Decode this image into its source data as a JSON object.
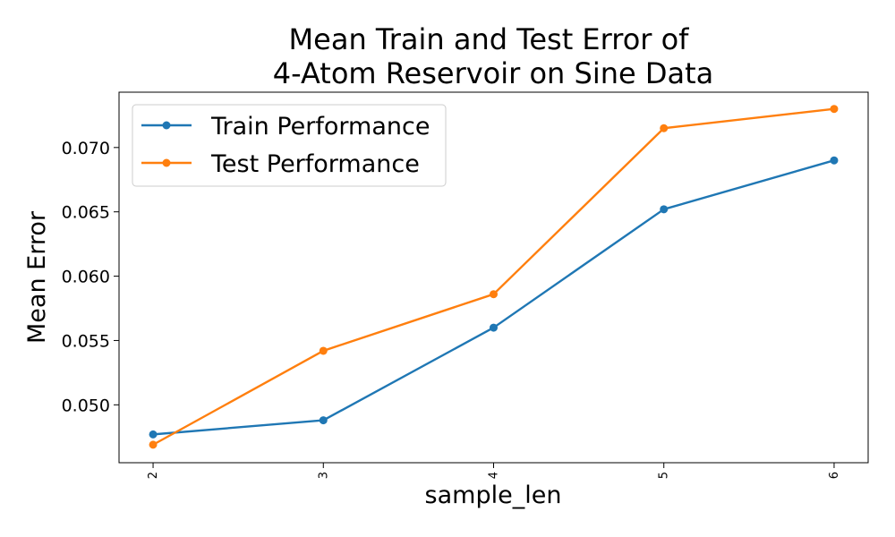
{
  "chart_data": {
    "type": "line",
    "title_line1": "Mean Train and Test Error of",
    "title_line2": "4-Atom Reservoir on Sine Data",
    "xlabel": "sample_len",
    "ylabel": "Mean Error",
    "x": [
      2,
      3,
      4,
      5,
      6
    ],
    "xlim": [
      1.8,
      6.2
    ],
    "ylim": [
      0.0455,
      0.0743
    ],
    "yticks": [
      0.05,
      0.055,
      0.06,
      0.065,
      0.07
    ],
    "ytick_labels": [
      "0.050",
      "0.055",
      "0.060",
      "0.065",
      "0.070"
    ],
    "xtick_labels": [
      "2",
      "3",
      "4",
      "5",
      "6"
    ],
    "grid": false,
    "legend_position": "top-left",
    "series": [
      {
        "name": "Train Performance",
        "color": "#1f77b4",
        "values": [
          0.0477,
          0.0488,
          0.056,
          0.0652,
          0.069
        ]
      },
      {
        "name": "Test Performance",
        "color": "#ff7f0e",
        "values": [
          0.0469,
          0.0542,
          0.0586,
          0.0715,
          0.073
        ]
      }
    ]
  }
}
